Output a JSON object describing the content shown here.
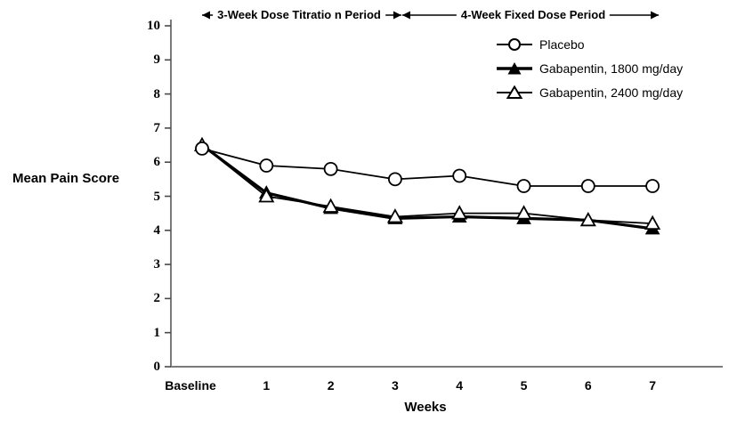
{
  "figure": {
    "ylabel": "Mean Pain Score",
    "xlabel": "Weeks"
  },
  "chart_data": {
    "type": "line",
    "title": "",
    "xlabel": "Weeks",
    "ylabel": "Mean Pain Score",
    "categories": [
      "Baseline",
      "1",
      "2",
      "3",
      "4",
      "5",
      "6",
      "7"
    ],
    "series": [
      {
        "name": "Placebo",
        "marker": "circle-open",
        "line_width": 1.8,
        "values": [
          6.4,
          5.9,
          5.8,
          5.5,
          5.6,
          5.3,
          5.3,
          5.3
        ]
      },
      {
        "name": "Gabapentin, 1800 mg/day",
        "marker": "triangle-filled",
        "line_width": 3.2,
        "values": [
          6.5,
          5.1,
          4.65,
          4.35,
          4.4,
          4.35,
          4.3,
          4.05
        ]
      },
      {
        "name": "Gabapentin, 2400 mg/day",
        "marker": "triangle-open",
        "line_width": 1.8,
        "values": [
          6.5,
          5.0,
          4.7,
          4.4,
          4.5,
          4.5,
          4.3,
          4.2
        ]
      }
    ],
    "ylim": [
      0,
      10
    ],
    "yticks": [
      0,
      1,
      2,
      3,
      4,
      5,
      6,
      7,
      8,
      9,
      10
    ],
    "grid": false,
    "legend_position": "top-right-inside",
    "annotations": [
      {
        "text": "3-Week Dose Titratio n Period",
        "x_from": "Baseline",
        "x_to": "3"
      },
      {
        "text": "4-Week Fixed Dose Period",
        "x_from": "3",
        "x_to": "7"
      }
    ]
  },
  "colors": {
    "series": "#000000",
    "axis": "#7a7a7a",
    "background": "#ffffff"
  }
}
